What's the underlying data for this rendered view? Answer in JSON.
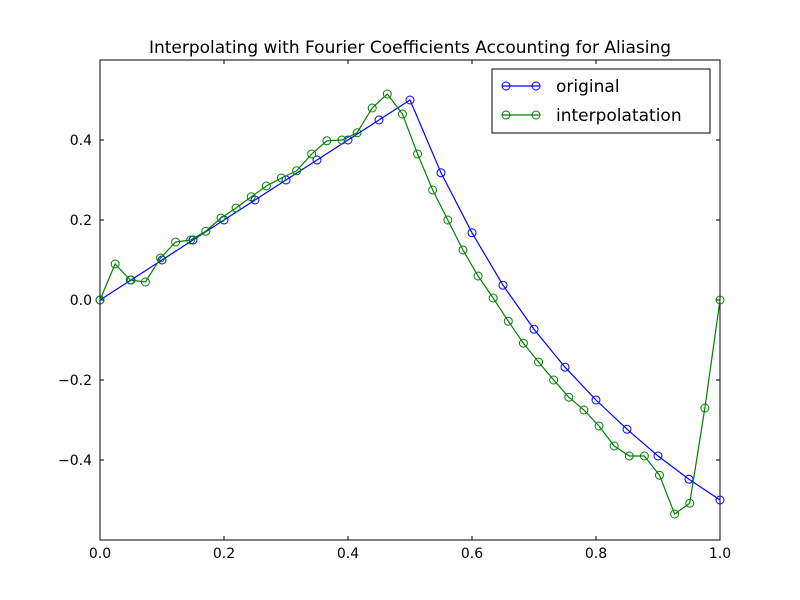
{
  "chart_data": {
    "type": "line",
    "title": "Interpolating with Fourier Coefficients Accounting for Aliasing",
    "xlabel": "",
    "ylabel": "",
    "xlim": [
      0.0,
      1.0
    ],
    "ylim": [
      -0.6,
      0.6
    ],
    "xticks": [
      0.0,
      0.2,
      0.4,
      0.6,
      0.8,
      1.0
    ],
    "xtick_labels": [
      "0.0",
      "0.2",
      "0.4",
      "0.6",
      "0.8",
      "1.0"
    ],
    "yticks": [
      -0.4,
      -0.2,
      0.0,
      0.2,
      0.4
    ],
    "ytick_labels": [
      "−0.4",
      "−0.2",
      "0.0",
      "0.2",
      "0.4"
    ],
    "grid": false,
    "legend_position": "top-right",
    "series": [
      {
        "name": "original",
        "color": "#0000ff",
        "marker": "open-circle",
        "x": [
          0.0,
          0.05,
          0.1,
          0.15,
          0.2,
          0.25,
          0.3,
          0.35,
          0.4,
          0.45,
          0.5,
          0.55,
          0.6,
          0.65,
          0.7,
          0.75,
          0.8,
          0.85,
          0.9,
          0.95,
          1.0
        ],
        "y": [
          0.0,
          0.05,
          0.1,
          0.15,
          0.2,
          0.25,
          0.3,
          0.35,
          0.4,
          0.45,
          0.5,
          0.318,
          0.168,
          0.037,
          -0.073,
          -0.168,
          -0.25,
          -0.323,
          -0.39,
          -0.448,
          -0.5
        ]
      },
      {
        "name": "interpolatation",
        "color": "#008000",
        "marker": "open-circle",
        "x": [
          0.0,
          0.0244,
          0.0488,
          0.0732,
          0.0976,
          0.122,
          0.1463,
          0.1707,
          0.1951,
          0.2195,
          0.2439,
          0.2683,
          0.2927,
          0.3171,
          0.3415,
          0.3659,
          0.3902,
          0.4146,
          0.439,
          0.4634,
          0.4878,
          0.5122,
          0.5366,
          0.561,
          0.5854,
          0.6098,
          0.6341,
          0.6585,
          0.6829,
          0.7073,
          0.7317,
          0.7561,
          0.7805,
          0.8049,
          0.8293,
          0.8537,
          0.878,
          0.9024,
          0.9268,
          0.9512,
          0.9756,
          1.0
        ],
        "y": [
          0.0,
          0.09,
          0.05,
          0.045,
          0.105,
          0.145,
          0.15,
          0.172,
          0.205,
          0.23,
          0.258,
          0.285,
          0.305,
          0.323,
          0.365,
          0.398,
          0.4,
          0.418,
          0.48,
          0.515,
          0.465,
          0.365,
          0.275,
          0.2,
          0.125,
          0.06,
          0.005,
          -0.053,
          -0.108,
          -0.155,
          -0.2,
          -0.243,
          -0.275,
          -0.315,
          -0.365,
          -0.39,
          -0.39,
          -0.438,
          -0.535,
          -0.508,
          -0.27,
          0.0
        ]
      }
    ]
  }
}
